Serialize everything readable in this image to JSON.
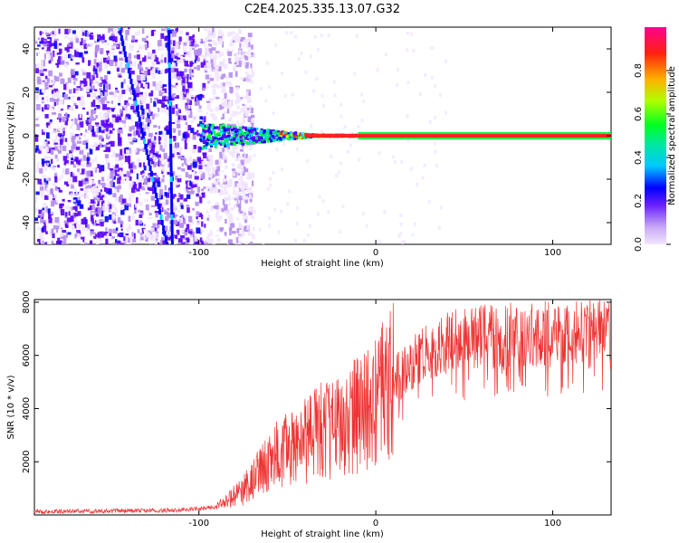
{
  "title": "C2E4.2025.335.13.07.G32",
  "chart_data": [
    {
      "type": "heatmap",
      "xlabel": "Height of straight line (km)",
      "ylabel": "Frequency (Hz)",
      "xlim": [
        -193,
        133
      ],
      "ylim": [
        -50,
        50
      ],
      "xticks": [
        -100,
        0,
        100
      ],
      "xtick_labels": [
        "-100",
        "0",
        "100"
      ],
      "yticks": [
        -40,
        -20,
        0,
        20,
        40
      ],
      "ytick_labels": [
        "-40",
        "-20",
        "0",
        "20",
        "40"
      ],
      "colorbar": {
        "label": "Normalized spectral amplitude",
        "range": [
          0,
          1
        ],
        "ticks": [
          0.0,
          0.2,
          0.4,
          0.6,
          0.8
        ],
        "tick_labels": [
          "0.0",
          "0.2",
          "0.4",
          "0.6",
          "0.8"
        ],
        "colors": [
          "#f2e6ff",
          "#b48cf0",
          "#5a00ff",
          "#0000ff",
          "#00d4ff",
          "#00ff40",
          "#d4ff00",
          "#ffb000",
          "#ff2020",
          "#ff0080"
        ]
      },
      "features": {
        "noise_region_x": [
          -193,
          -80
        ],
        "carrier_frequency": 0,
        "carrier_start_x": -100,
        "streak_lines": [
          {
            "x_at_top": -145,
            "x_at_bottom": -118
          },
          {
            "x_at_top": -117,
            "x_at_bottom": -115
          }
        ]
      }
    },
    {
      "type": "line",
      "xlabel": "Height of straight line (km)",
      "ylabel": "SNR (10 * v/v)",
      "xlim": [
        -193,
        133
      ],
      "ylim": [
        0,
        8100
      ],
      "xticks": [
        -100,
        0,
        100
      ],
      "xtick_labels": [
        "-100",
        "0",
        "100"
      ],
      "yticks": [
        2000,
        4000,
        6000,
        8000
      ],
      "ytick_labels": [
        "2000",
        "4000",
        "6000",
        "8000"
      ],
      "color": "#ee3333",
      "x": [
        -193,
        -150,
        -110,
        -90,
        -75,
        -65,
        -55,
        -45,
        -35,
        -25,
        -15,
        -5,
        0,
        10,
        20,
        30,
        40,
        55,
        70,
        85,
        100,
        115,
        133
      ],
      "values": [
        120,
        150,
        180,
        300,
        900,
        1700,
        2300,
        2600,
        3000,
        3300,
        3600,
        3900,
        4300,
        5000,
        5700,
        6200,
        6500,
        6700,
        6750,
        6800,
        6850,
        6900,
        6950
      ]
    }
  ]
}
